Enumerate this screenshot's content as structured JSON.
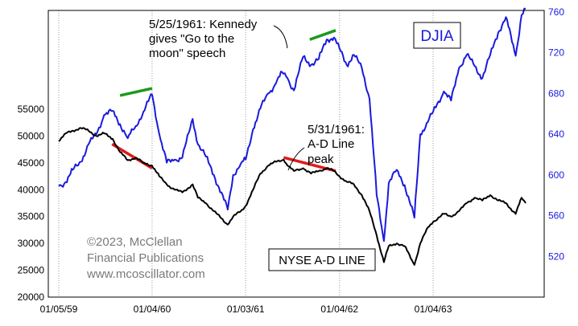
{
  "chart_data": {
    "type": "line",
    "left_axis": {
      "min": 20000,
      "max": 55000,
      "ticks": [
        20000,
        25000,
        30000,
        35000,
        40000,
        45000,
        50000,
        55000
      ]
    },
    "right_axis": {
      "min": 480,
      "max": 760,
      "ticks": [
        520,
        560,
        600,
        640,
        680,
        720,
        760
      ]
    },
    "x_axis": {
      "start": "1959-01-05",
      "end": "1963-12-31",
      "ticks": [
        {
          "date": "1959-01-05",
          "label": "01/05/59"
        },
        {
          "date": "1960-01-04",
          "label": "01/04/60"
        },
        {
          "date": "1961-01-03",
          "label": "01/03/61"
        },
        {
          "date": "1962-01-04",
          "label": "01/04/62"
        },
        {
          "date": "1963-01-04",
          "label": "01/04/63"
        }
      ]
    },
    "grid": "vertical dotted at tick dates",
    "series": [
      {
        "name": "DJIA",
        "axis": "right",
        "color": "#1a1adc",
        "points": [
          [
            "1959-01-05",
            589
          ],
          [
            "1959-02-01",
            593
          ],
          [
            "1959-03-01",
            605
          ],
          [
            "1959-04-01",
            613
          ],
          [
            "1959-05-01",
            630
          ],
          [
            "1959-06-01",
            640
          ],
          [
            "1959-07-01",
            659
          ],
          [
            "1959-08-03",
            663
          ],
          [
            "1959-09-01",
            650
          ],
          [
            "1959-10-01",
            636
          ],
          [
            "1959-11-01",
            648
          ],
          [
            "1959-12-01",
            662
          ],
          [
            "1960-01-04",
            679
          ],
          [
            "1960-02-01",
            640
          ],
          [
            "1960-03-01",
            612
          ],
          [
            "1960-04-01",
            615
          ],
          [
            "1960-05-01",
            617
          ],
          [
            "1960-06-10",
            655
          ],
          [
            "1960-07-01",
            630
          ],
          [
            "1960-08-01",
            618
          ],
          [
            "1960-09-01",
            600
          ],
          [
            "1960-10-25",
            566
          ],
          [
            "1960-11-15",
            600
          ],
          [
            "1960-12-15",
            611
          ],
          [
            "1961-01-03",
            615
          ],
          [
            "1961-02-01",
            645
          ],
          [
            "1961-03-01",
            665
          ],
          [
            "1961-04-01",
            680
          ],
          [
            "1961-05-01",
            690
          ],
          [
            "1961-05-25",
            701
          ],
          [
            "1961-06-15",
            695
          ],
          [
            "1961-07-10",
            683
          ],
          [
            "1961-08-15",
            716
          ],
          [
            "1961-09-15",
            708
          ],
          [
            "1961-10-15",
            714
          ],
          [
            "1961-11-15",
            733
          ],
          [
            "1961-12-13",
            735
          ],
          [
            "1962-01-04",
            724
          ],
          [
            "1962-02-01",
            708
          ],
          [
            "1962-03-01",
            718
          ],
          [
            "1962-04-01",
            705
          ],
          [
            "1962-05-01",
            675
          ],
          [
            "1962-05-29",
            580
          ],
          [
            "1962-06-26",
            535
          ],
          [
            "1962-07-15",
            592
          ],
          [
            "1962-08-15",
            605
          ],
          [
            "1962-09-15",
            590
          ],
          [
            "1962-10-23",
            558
          ],
          [
            "1962-11-15",
            640
          ],
          [
            "1962-12-15",
            652
          ],
          [
            "1963-01-04",
            662
          ],
          [
            "1963-02-15",
            682
          ],
          [
            "1963-03-15",
            673
          ],
          [
            "1963-04-15",
            705
          ],
          [
            "1963-05-15",
            718
          ],
          [
            "1963-06-15",
            707
          ],
          [
            "1963-07-15",
            695
          ],
          [
            "1963-08-15",
            718
          ],
          [
            "1963-09-15",
            740
          ],
          [
            "1963-10-15",
            755
          ],
          [
            "1963-11-22",
            717
          ],
          [
            "1963-12-15",
            757
          ],
          [
            "1963-12-31",
            763
          ]
        ]
      },
      {
        "name": "NYSE A-D LINE",
        "axis": "left",
        "color": "#000000",
        "points": [
          [
            "1959-01-05",
            49000
          ],
          [
            "1959-02-01",
            50500
          ],
          [
            "1959-03-01",
            51000
          ],
          [
            "1959-04-01",
            51500
          ],
          [
            "1959-05-01",
            51000
          ],
          [
            "1959-06-01",
            50000
          ],
          [
            "1959-07-01",
            50500
          ],
          [
            "1959-08-03",
            49500
          ],
          [
            "1959-09-01",
            47000
          ],
          [
            "1959-10-01",
            45500
          ],
          [
            "1959-11-01",
            46000
          ],
          [
            "1959-12-01",
            45000
          ],
          [
            "1960-01-04",
            44500
          ],
          [
            "1960-02-01",
            42500
          ],
          [
            "1960-03-01",
            41000
          ],
          [
            "1960-04-01",
            40000
          ],
          [
            "1960-05-01",
            39500
          ],
          [
            "1960-06-10",
            41000
          ],
          [
            "1960-07-01",
            38500
          ],
          [
            "1960-08-01",
            37500
          ],
          [
            "1960-09-01",
            36000
          ],
          [
            "1960-10-25",
            33500
          ],
          [
            "1960-11-15",
            35000
          ],
          [
            "1960-12-15",
            36000
          ],
          [
            "1961-01-03",
            37000
          ],
          [
            "1961-02-01",
            40000
          ],
          [
            "1961-03-01",
            43000
          ],
          [
            "1961-04-01",
            44500
          ],
          [
            "1961-05-01",
            45200
          ],
          [
            "1961-05-31",
            45600
          ],
          [
            "1961-06-15",
            44500
          ],
          [
            "1961-07-10",
            43500
          ],
          [
            "1961-08-15",
            44000
          ],
          [
            "1961-09-15",
            43000
          ],
          [
            "1961-10-15",
            43500
          ],
          [
            "1961-11-15",
            44000
          ],
          [
            "1961-12-13",
            43500
          ],
          [
            "1962-01-04",
            42500
          ],
          [
            "1962-02-01",
            41500
          ],
          [
            "1962-03-01",
            41000
          ],
          [
            "1962-04-01",
            39000
          ],
          [
            "1962-05-01",
            36000
          ],
          [
            "1962-05-29",
            31500
          ],
          [
            "1962-06-26",
            26500
          ],
          [
            "1962-07-15",
            29500
          ],
          [
            "1962-08-15",
            30000
          ],
          [
            "1962-09-15",
            29500
          ],
          [
            "1962-10-23",
            26000
          ],
          [
            "1962-11-15",
            30000
          ],
          [
            "1962-12-15",
            33000
          ],
          [
            "1963-01-04",
            34000
          ],
          [
            "1963-02-15",
            35500
          ],
          [
            "1963-03-15",
            35000
          ],
          [
            "1963-04-15",
            36000
          ],
          [
            "1963-05-15",
            37500
          ],
          [
            "1963-06-15",
            38500
          ],
          [
            "1963-07-15",
            38000
          ],
          [
            "1963-08-15",
            39000
          ],
          [
            "1963-09-15",
            38000
          ],
          [
            "1963-10-15",
            37500
          ],
          [
            "1963-11-22",
            35500
          ],
          [
            "1963-12-15",
            38500
          ],
          [
            "1963-12-31",
            37500
          ]
        ]
      }
    ],
    "trendlines": [
      {
        "series": "DJIA",
        "color": "#1a9a1a",
        "from": [
          "1959-09-01",
          678
        ],
        "to": [
          "1960-01-04",
          685
        ]
      },
      {
        "series": "DJIA",
        "color": "#1a9a1a",
        "from": [
          "1961-09-10",
          733
        ],
        "to": [
          "1961-12-20",
          742
        ]
      },
      {
        "series": "NYSE A-D LINE",
        "color": "#e01a1a",
        "from": [
          "1959-08-01",
          48500
        ],
        "to": [
          "1960-01-04",
          44000
        ]
      },
      {
        "series": "NYSE A-D LINE",
        "color": "#e01a1a",
        "from": [
          "1961-05-31",
          46000
        ],
        "to": [
          "1961-12-20",
          43500
        ]
      }
    ],
    "annotations": {
      "kennedy": {
        "lines": [
          "5/25/1961: Kennedy",
          "gives \"Go to the",
          "moon\" speech"
        ]
      },
      "ad_peak": {
        "lines": [
          "5/31/1961:",
          "A-D Line",
          "peak"
        ]
      }
    },
    "legend_djia": "DJIA",
    "legend_ad": "NYSE A-D LINE",
    "credit_lines": [
      "©2023, McClellan",
      "Financial Publications",
      "www.mcoscillator.com"
    ],
    "colors": {
      "frame": "#000000",
      "grid": "#9a9a9a"
    }
  }
}
